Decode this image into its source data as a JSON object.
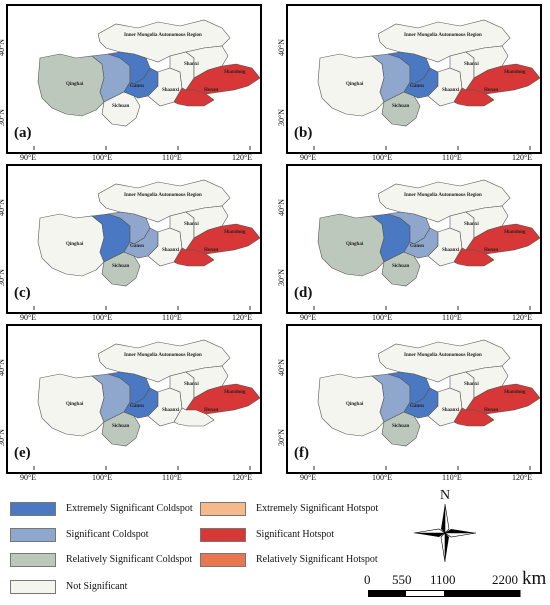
{
  "colors": {
    "extremely_significant_coldspot": "#4a78c2",
    "significant_coldspot": "#8fa7cc",
    "relatively_significant_coldspot": "#bdc8bc",
    "not_significant": "#f5f5ef",
    "extremely_significant_hotspot": "#f6b98a",
    "significant_hotspot": "#d83737",
    "relatively_significant_hotspot": "#e8764f"
  },
  "panels": [
    {
      "label": "(a)"
    },
    {
      "label": "(b)"
    },
    {
      "label": "(c)"
    },
    {
      "label": "(d)"
    },
    {
      "label": "(e)"
    },
    {
      "label": "(f)"
    }
  ],
  "axes": {
    "y_ticks": [
      "40°N",
      "30°N"
    ],
    "x_ticks": [
      "90°E",
      "100°E",
      "110°E",
      "120°E"
    ]
  },
  "region_labels": {
    "inner_mongolia": "Inner Mongolia Autonomous Region",
    "qinghai": "Qinghai",
    "gansu": "Gansu",
    "sichuan": "Sichuan",
    "shaanxi": "Shaanxi",
    "shanxi": "Shanxi",
    "henan": "Henan",
    "shandong": "Shandong"
  },
  "legend": [
    {
      "label": "Extremely Significant Coldspot",
      "color_key": "extremely_significant_coldspot"
    },
    {
      "label": "Significant Coldspot",
      "color_key": "significant_coldspot"
    },
    {
      "label": "Relatively Significant Coldspot",
      "color_key": "relatively_significant_coldspot"
    },
    {
      "label": "Not Significant",
      "color_key": "not_significant"
    },
    {
      "label": "Extremely Significant Hotspot",
      "color_key": "extremely_significant_hotspot"
    },
    {
      "label": "Significant Hotspot",
      "color_key": "significant_hotspot"
    },
    {
      "label": "Relatively Significant Hotspot",
      "color_key": "relatively_significant_hotspot"
    }
  ],
  "compass": {
    "north_label": "N"
  },
  "scale_bar": {
    "ticks": [
      "0",
      "550",
      "1100",
      "2200"
    ],
    "unit": "km"
  }
}
